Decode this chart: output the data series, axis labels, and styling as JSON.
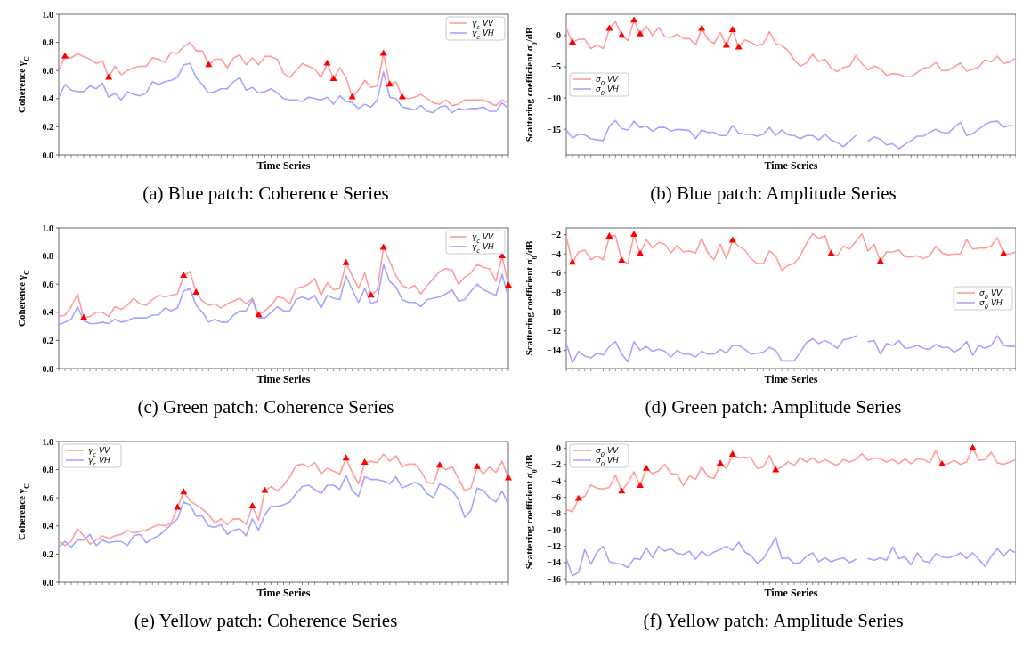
{
  "chart_data": [
    {
      "type": "line",
      "title": "(a) Blue patch: Coherence Series",
      "xlabel": "Time Series",
      "ylabel": "Coherence γ$_{C}$",
      "legend": "top right",
      "ylim": [
        0,
        1
      ],
      "yticks": [
        {
          "value": 0,
          "label": "0.0"
        },
        {
          "value": 0.2,
          "label": "0.2"
        },
        {
          "value": 0.4,
          "label": "0.4"
        },
        {
          "value": 0.6,
          "label": "0.6"
        },
        {
          "value": 0.8,
          "label": "0.8"
        },
        {
          "value": 1,
          "label": "1.0"
        }
      ],
      "categories": [
        null,
        null,
        null,
        null,
        null,
        null,
        null,
        null,
        null,
        null,
        null,
        null,
        null,
        null,
        null,
        null,
        null,
        null,
        null,
        null,
        null,
        null,
        null,
        null,
        null,
        null,
        null,
        null,
        null,
        null,
        null,
        null,
        null,
        null,
        null,
        null,
        null,
        null,
        null,
        null,
        null,
        null,
        null,
        null,
        null,
        null,
        null,
        null,
        null,
        null,
        null,
        null,
        null,
        null,
        null,
        null,
        null,
        null,
        null,
        null,
        null,
        null,
        null,
        null,
        null,
        null,
        null,
        null,
        null,
        null,
        null,
        null,
        null
      ],
      "series": [
        {
          "name": "γ$_{c}$ VV",
          "color": "#ff9d9d",
          "values": [
            0.6,
            0.7,
            0.69,
            0.72,
            0.7,
            0.68,
            0.65,
            0.67,
            0.55,
            0.63,
            0.57,
            0.6,
            0.62,
            0.63,
            0.63,
            0.69,
            0.68,
            0.66,
            0.73,
            0.72,
            0.77,
            0.8,
            0.74,
            0.74,
            0.64,
            0.68,
            0.68,
            0.62,
            0.69,
            0.71,
            0.64,
            0.69,
            0.64,
            0.7,
            0.7,
            0.68,
            0.58,
            0.55,
            0.6,
            0.65,
            0.63,
            0.61,
            0.55,
            0.65,
            0.54,
            0.62,
            0.55,
            0.41,
            0.46,
            0.53,
            0.48,
            0.49,
            0.72,
            0.5,
            0.52,
            0.41,
            0.4,
            0.41,
            0.43,
            0.4,
            0.37,
            0.36,
            0.39,
            0.35,
            0.36,
            0.39,
            0.39,
            0.39,
            0.39,
            0.37,
            0.35,
            0.39,
            0.37
          ]
        },
        {
          "name": "γ$_{c}$ VH",
          "color": "#a5a5ff",
          "values": [
            0.41,
            0.5,
            0.46,
            0.45,
            0.45,
            0.49,
            0.47,
            0.51,
            0.41,
            0.44,
            0.39,
            0.45,
            0.43,
            0.42,
            0.44,
            0.52,
            0.5,
            0.52,
            0.53,
            0.55,
            0.64,
            0.65,
            0.55,
            0.5,
            0.44,
            0.45,
            0.47,
            0.47,
            0.52,
            0.55,
            0.46,
            0.48,
            0.44,
            0.45,
            0.47,
            0.44,
            0.4,
            0.39,
            0.39,
            0.38,
            0.41,
            0.4,
            0.39,
            0.41,
            0.36,
            0.42,
            0.38,
            0.37,
            0.33,
            0.36,
            0.34,
            0.39,
            0.59,
            0.41,
            0.4,
            0.34,
            0.33,
            0.32,
            0.35,
            0.31,
            0.3,
            0.34,
            0.35,
            0.3,
            0.33,
            0.32,
            0.33,
            0.33,
            0.34,
            0.31,
            0.31,
            0.37,
            0.33
          ]
        },
        {
          "type": "scatter",
          "marker": "triangle",
          "color": "#ff0000",
          "values": [
            null,
            0.7,
            null,
            null,
            null,
            null,
            null,
            null,
            0.55,
            null,
            null,
            null,
            null,
            null,
            null,
            null,
            null,
            null,
            null,
            null,
            null,
            null,
            null,
            null,
            0.64,
            null,
            null,
            null,
            null,
            null,
            null,
            null,
            null,
            null,
            null,
            null,
            null,
            null,
            null,
            null,
            null,
            null,
            null,
            0.65,
            0.54,
            null,
            null,
            0.41,
            null,
            null,
            null,
            null,
            0.72,
            0.5,
            null,
            0.41,
            null,
            null,
            null,
            null,
            null,
            null,
            null,
            null,
            null,
            null,
            null,
            null,
            null,
            null,
            null,
            null,
            null
          ]
        }
      ]
    },
    {
      "type": "line",
      "title": "(b) Blue patch: Amplitude Series",
      "xlabel": "Time Series",
      "ylabel": "Scattering coefficient σ$_{0}$/dB",
      "legend": "left",
      "ylim": [
        -19.1,
        3.4
      ],
      "yticks": [
        {
          "value": -15,
          "label": "−15"
        },
        {
          "value": -10,
          "label": "−10"
        },
        {
          "value": -5,
          "label": "−5"
        },
        0
      ],
      "categories": [
        null,
        null,
        null,
        null,
        null,
        null,
        null,
        null,
        null,
        null,
        null,
        null,
        null,
        null,
        null,
        null,
        null,
        null,
        null,
        null,
        null,
        null,
        null,
        null,
        null,
        null,
        null,
        null,
        null,
        null,
        null,
        null,
        null,
        null,
        null,
        null,
        null,
        null,
        null,
        null,
        null,
        null,
        null,
        null,
        null,
        null,
        null,
        null,
        null,
        null,
        null,
        null,
        null,
        null,
        null,
        null,
        null,
        null,
        null,
        null,
        null,
        null,
        null,
        null,
        null,
        null,
        null,
        null,
        null,
        null,
        null,
        null,
        null,
        null
      ],
      "series": [
        {
          "name": "σ$_{0}$ VV",
          "color": "#ff9d9d",
          "values": [
            1.2,
            -1.1,
            -0.6,
            -0.6,
            -2.1,
            -1.5,
            -2.1,
            1.1,
            2.2,
            0.0,
            -0.8,
            2.4,
            0.2,
            1.5,
            0.0,
            1.3,
            -0.2,
            -0.3,
            0.2,
            -0.5,
            -0.5,
            -1.5,
            1.1,
            -0.6,
            -1.3,
            0.5,
            -1.6,
            0.9,
            -1.9,
            -0.7,
            -1.1,
            -1.6,
            -1.3,
            0.6,
            -1.3,
            -1.6,
            -2.4,
            -3.9,
            -4.9,
            -4.4,
            -3.0,
            -4.2,
            -3.8,
            -5.2,
            -5.8,
            -5.1,
            -4.9,
            -3.2,
            -4.5,
            -5.5,
            -4.9,
            -5.3,
            -6.4,
            -6.1,
            -6.2,
            -6.6,
            -6.6,
            -5.9,
            -5.2,
            -5.1,
            -4.3,
            -5.6,
            -5.6,
            -5.0,
            -4.4,
            -5.7,
            -5.4,
            -5.0,
            -3.9,
            -4.2,
            -3.3,
            -4.5,
            -4.2,
            -3.6
          ]
        },
        {
          "name": "σ$_{0}$ VH",
          "color": "#a5a5ff",
          "values": [
            -15.1,
            -16.4,
            -15.8,
            -15.9,
            -16.5,
            -16.7,
            -16.8,
            -14.5,
            -13.6,
            -14.9,
            -15.1,
            -13.7,
            -14.7,
            -14.5,
            -15.3,
            -14.7,
            -14.7,
            -15.3,
            -15.0,
            -15.1,
            -15.2,
            -16.5,
            -15.1,
            -15.5,
            -15.5,
            -16.0,
            -16.0,
            -14.4,
            -15.6,
            -15.8,
            -15.8,
            -16.1,
            -15.8,
            -14.7,
            -16.0,
            -15.1,
            -15.9,
            -16.0,
            -16.5,
            -16.0,
            -16.0,
            -16.7,
            -15.8,
            -16.7,
            -17.1,
            -17.8,
            -16.9,
            -16.0,
            null,
            -16.9,
            -16.2,
            -16.6,
            -17.5,
            -17.3,
            -18.1,
            -17.4,
            -16.8,
            -16.1,
            -16.1,
            -15.5,
            -15.0,
            -15.5,
            -15.6,
            -14.7,
            -13.9,
            -16.0,
            -15.7,
            -15.0,
            -14.2,
            -13.8,
            -13.7,
            -14.7,
            -14.4,
            -14.5
          ]
        },
        {
          "type": "scatter",
          "marker": "triangle",
          "color": "#ff0000",
          "values": [
            null,
            -1.1,
            null,
            null,
            null,
            null,
            null,
            1.1,
            null,
            0.0,
            null,
            2.4,
            0.2,
            null,
            null,
            null,
            null,
            null,
            null,
            null,
            null,
            null,
            1.1,
            null,
            null,
            null,
            -1.6,
            0.9,
            -1.9,
            null,
            null,
            null,
            null,
            null,
            null,
            null,
            null,
            null,
            null,
            null,
            null,
            null,
            null,
            null,
            null,
            null,
            null,
            null,
            null,
            null,
            null,
            null,
            null,
            null,
            null,
            null,
            null,
            null,
            null,
            null,
            null,
            null,
            null,
            null,
            null,
            null,
            null,
            null,
            null,
            null,
            null,
            null,
            null,
            null
          ]
        }
      ]
    },
    {
      "type": "line",
      "title": "(c) Green patch: Coherence Series",
      "xlabel": "Time Series",
      "ylabel": "Coherence γ$_{C}$",
      "legend": "top right",
      "ylim": [
        0,
        1
      ],
      "yticks": [
        {
          "value": 0,
          "label": "0.0"
        },
        {
          "value": 0.2,
          "label": "0.2"
        },
        {
          "value": 0.4,
          "label": "0.4"
        },
        {
          "value": 0.6,
          "label": "0.6"
        },
        {
          "value": 0.8,
          "label": "0.8"
        },
        {
          "value": 1,
          "label": "1.0"
        }
      ],
      "categories": [
        null,
        null,
        null,
        null,
        null,
        null,
        null,
        null,
        null,
        null,
        null,
        null,
        null,
        null,
        null,
        null,
        null,
        null,
        null,
        null,
        null,
        null,
        null,
        null,
        null,
        null,
        null,
        null,
        null,
        null,
        null,
        null,
        null,
        null,
        null,
        null,
        null,
        null,
        null,
        null,
        null,
        null,
        null,
        null,
        null,
        null,
        null,
        null,
        null,
        null,
        null,
        null,
        null,
        null,
        null,
        null,
        null,
        null,
        null,
        null,
        null,
        null,
        null,
        null,
        null,
        null,
        null,
        null,
        null,
        null,
        null,
        null,
        null
      ],
      "series": [
        {
          "name": "γ$_{c}$ VV",
          "color": "#ff9d9d",
          "values": [
            0.37,
            0.38,
            0.44,
            0.53,
            0.36,
            0.37,
            0.4,
            0.4,
            0.37,
            0.44,
            0.42,
            0.45,
            0.5,
            0.46,
            0.45,
            0.49,
            0.52,
            0.51,
            0.52,
            0.53,
            0.66,
            0.69,
            0.54,
            0.48,
            0.45,
            0.46,
            0.43,
            0.46,
            0.48,
            0.5,
            0.46,
            0.5,
            0.38,
            0.41,
            0.45,
            0.51,
            0.5,
            0.46,
            0.57,
            0.58,
            0.6,
            0.64,
            0.52,
            0.61,
            0.56,
            0.57,
            0.75,
            0.66,
            0.57,
            0.68,
            0.52,
            0.56,
            0.86,
            0.76,
            0.66,
            0.59,
            0.57,
            0.59,
            0.53,
            0.59,
            0.64,
            0.69,
            0.71,
            0.7,
            0.6,
            0.65,
            0.68,
            0.74,
            0.72,
            0.71,
            0.62,
            0.8,
            0.59
          ]
        },
        {
          "name": "γ$_{c}$ VH",
          "color": "#a5a5ff",
          "values": [
            0.31,
            0.33,
            0.35,
            0.44,
            0.34,
            0.32,
            0.32,
            0.33,
            0.32,
            0.35,
            0.33,
            0.34,
            0.36,
            0.36,
            0.36,
            0.38,
            0.38,
            0.43,
            0.41,
            0.43,
            0.55,
            0.57,
            0.45,
            0.4,
            0.33,
            0.35,
            0.33,
            0.33,
            0.38,
            0.41,
            0.41,
            0.49,
            0.36,
            0.36,
            0.4,
            0.44,
            0.41,
            0.41,
            0.49,
            0.51,
            0.49,
            0.52,
            0.43,
            0.52,
            0.5,
            0.49,
            0.66,
            0.56,
            0.47,
            0.57,
            0.46,
            0.48,
            0.74,
            0.62,
            0.58,
            0.49,
            0.47,
            0.47,
            0.44,
            0.49,
            0.5,
            0.51,
            0.53,
            0.56,
            0.48,
            0.49,
            0.55,
            0.6,
            0.56,
            0.54,
            0.52,
            0.67,
            0.5
          ]
        },
        {
          "type": "scatter",
          "marker": "triangle",
          "color": "#ff0000",
          "values": [
            null,
            null,
            null,
            null,
            0.36,
            null,
            null,
            null,
            null,
            null,
            null,
            null,
            null,
            null,
            null,
            null,
            null,
            null,
            null,
            null,
            0.66,
            null,
            0.54,
            null,
            null,
            null,
            null,
            null,
            null,
            null,
            null,
            null,
            0.38,
            null,
            null,
            null,
            null,
            null,
            null,
            null,
            null,
            null,
            null,
            null,
            null,
            null,
            0.75,
            null,
            null,
            null,
            0.52,
            null,
            0.86,
            null,
            null,
            null,
            null,
            null,
            null,
            null,
            null,
            null,
            null,
            null,
            null,
            null,
            null,
            null,
            null,
            null,
            null,
            0.8,
            0.59
          ]
        }
      ]
    },
    {
      "type": "line",
      "title": "(d) Green patch: Amplitude Series",
      "xlabel": "Time Series",
      "ylabel": "Scattering coefficient σ$_{0}$/dB",
      "legend": "right",
      "ylim": [
        -15.9,
        -1.3
      ],
      "yticks": [
        {
          "value": -14,
          "label": "−14"
        },
        {
          "value": -12,
          "label": "−12"
        },
        {
          "value": -10,
          "label": "−10"
        },
        {
          "value": -8,
          "label": "−8"
        },
        {
          "value": -6,
          "label": "−6"
        },
        {
          "value": -4,
          "label": "−4"
        },
        {
          "value": -2,
          "label": "−2"
        }
      ],
      "categories": [
        null,
        null,
        null,
        null,
        null,
        null,
        null,
        null,
        null,
        null,
        null,
        null,
        null,
        null,
        null,
        null,
        null,
        null,
        null,
        null,
        null,
        null,
        null,
        null,
        null,
        null,
        null,
        null,
        null,
        null,
        null,
        null,
        null,
        null,
        null,
        null,
        null,
        null,
        null,
        null,
        null,
        null,
        null,
        null,
        null,
        null,
        null,
        null,
        null,
        null,
        null,
        null,
        null,
        null,
        null,
        null,
        null,
        null,
        null,
        null,
        null,
        null,
        null,
        null,
        null,
        null,
        null,
        null,
        null,
        null,
        null,
        null,
        null,
        null
      ],
      "series": [
        {
          "name": "σ$_{0}$ VV",
          "color": "#ff9d9d",
          "values": [
            -2.2,
            -4.9,
            -3.8,
            -3.6,
            -4.6,
            -4.2,
            -4.6,
            -2.2,
            -2.1,
            -4.7,
            -5.0,
            -2.0,
            -4.0,
            -2.5,
            -3.4,
            -2.8,
            -3.0,
            -3.9,
            -3.1,
            -3.8,
            -3.7,
            -3.9,
            -2.4,
            -3.9,
            -4.6,
            -3.0,
            -4.5,
            -2.6,
            -3.2,
            -3.6,
            -4.5,
            -5.0,
            -5.0,
            -3.7,
            -4.2,
            -5.7,
            -5.2,
            -5.0,
            -4.2,
            -2.9,
            -1.9,
            -2.4,
            -2.1,
            -4.0,
            -4.2,
            -3.2,
            -3.5,
            -2.7,
            -1.9,
            -3.7,
            -3.0,
            -4.8,
            -3.8,
            -3.8,
            -3.6,
            -4.3,
            -4.3,
            -4.2,
            -4.5,
            -4.2,
            -3.2,
            -3.9,
            -4.1,
            -4.0,
            -4.0,
            -2.5,
            -3.5,
            -3.4,
            -3.4,
            -3.2,
            -2.3,
            -4.0,
            -4.0,
            -3.8
          ]
        },
        {
          "name": "σ$_{0}$ VH",
          "color": "#a5a5ff",
          "values": [
            -13.3,
            -15.3,
            -14.1,
            -14.6,
            -14.8,
            -14.3,
            -14.5,
            -13.6,
            -13.1,
            -14.4,
            -15.2,
            -13.1,
            -14.0,
            -13.6,
            -14.1,
            -13.9,
            -14.1,
            -14.7,
            -14.0,
            -14.4,
            -14.4,
            -14.7,
            -14.1,
            -14.4,
            -14.4,
            -13.9,
            -14.3,
            -13.5,
            -13.5,
            -13.9,
            -14.4,
            -14.3,
            -14.2,
            -13.7,
            -14.0,
            -15.1,
            -15.1,
            -15.1,
            -14.2,
            -13.2,
            -12.8,
            -13.3,
            -13.0,
            -13.3,
            -13.8,
            -12.9,
            -12.8,
            -12.5,
            null,
            -13.1,
            -13.0,
            -14.4,
            -13.3,
            -13.5,
            -13.0,
            -13.8,
            -13.7,
            -13.5,
            -13.8,
            -13.9,
            -13.4,
            -13.7,
            -13.7,
            -14.2,
            -13.8,
            -13.1,
            -14.5,
            -13.5,
            -13.8,
            -13.5,
            -12.5,
            -13.5,
            -13.6,
            -13.6
          ]
        },
        {
          "type": "scatter",
          "marker": "triangle",
          "color": "#ff0000",
          "values": [
            null,
            -4.9,
            null,
            null,
            null,
            null,
            null,
            -2.2,
            null,
            -4.7,
            null,
            -2.0,
            -4.0,
            null,
            null,
            null,
            null,
            null,
            null,
            null,
            null,
            null,
            null,
            null,
            null,
            null,
            null,
            -2.6,
            null,
            null,
            null,
            null,
            null,
            null,
            null,
            null,
            null,
            null,
            null,
            null,
            null,
            null,
            null,
            -4.0,
            null,
            null,
            null,
            null,
            null,
            null,
            null,
            -4.8,
            null,
            null,
            null,
            null,
            null,
            null,
            null,
            null,
            null,
            null,
            null,
            null,
            null,
            null,
            null,
            null,
            null,
            null,
            null,
            -4.0,
            null,
            null
          ]
        }
      ]
    },
    {
      "type": "line",
      "title": "(e) Yellow patch: Coherence Series",
      "xlabel": "Time Series",
      "ylabel": "Coherence γ$_{C}$",
      "legend": "top left",
      "ylim": [
        0,
        1
      ],
      "yticks": [
        {
          "value": 0,
          "label": "0.0"
        },
        {
          "value": 0.2,
          "label": "0.2"
        },
        {
          "value": 0.4,
          "label": "0.4"
        },
        {
          "value": 0.6,
          "label": "0.6"
        },
        {
          "value": 0.8,
          "label": "0.8"
        },
        {
          "value": 1,
          "label": "1.0"
        }
      ],
      "categories": [
        null,
        null,
        null,
        null,
        null,
        null,
        null,
        null,
        null,
        null,
        null,
        null,
        null,
        null,
        null,
        null,
        null,
        null,
        null,
        null,
        null,
        null,
        null,
        null,
        null,
        null,
        null,
        null,
        null,
        null,
        null,
        null,
        null,
        null,
        null,
        null,
        null,
        null,
        null,
        null,
        null,
        null,
        null,
        null,
        null,
        null,
        null,
        null,
        null,
        null,
        null,
        null,
        null,
        null,
        null,
        null,
        null,
        null,
        null,
        null,
        null,
        null,
        null,
        null,
        null,
        null,
        null,
        null,
        null,
        null,
        null,
        null,
        null
      ],
      "series": [
        {
          "name": "γ$_{c}$ VV",
          "color": "#ff9d9d",
          "values": [
            0.29,
            0.26,
            0.29,
            0.38,
            0.33,
            0.27,
            0.3,
            0.33,
            0.31,
            0.33,
            0.34,
            0.37,
            0.35,
            0.36,
            0.37,
            0.39,
            0.41,
            0.4,
            0.42,
            0.53,
            0.64,
            0.58,
            0.55,
            0.52,
            0.48,
            0.42,
            0.45,
            0.41,
            0.45,
            0.45,
            0.41,
            0.54,
            0.44,
            0.65,
            0.68,
            0.65,
            0.69,
            0.75,
            0.83,
            0.84,
            0.82,
            0.85,
            0.77,
            0.81,
            0.79,
            0.77,
            0.88,
            0.78,
            0.7,
            0.85,
            0.86,
            0.85,
            0.91,
            0.86,
            0.9,
            0.82,
            0.84,
            0.84,
            0.79,
            0.71,
            0.7,
            0.83,
            0.8,
            0.82,
            0.74,
            0.65,
            0.67,
            0.82,
            0.77,
            0.82,
            0.78,
            0.86,
            0.74
          ]
        },
        {
          "name": "γ$_{c}$ VH",
          "color": "#a5a5ff",
          "values": [
            0.25,
            0.29,
            0.25,
            0.3,
            0.3,
            0.34,
            0.26,
            0.3,
            0.28,
            0.29,
            0.29,
            0.26,
            0.33,
            0.34,
            0.28,
            0.31,
            0.33,
            0.37,
            0.41,
            0.45,
            0.57,
            0.55,
            0.47,
            0.47,
            0.4,
            0.39,
            0.41,
            0.34,
            0.37,
            0.38,
            0.33,
            0.45,
            0.37,
            0.48,
            0.54,
            0.54,
            0.55,
            0.57,
            0.63,
            0.68,
            0.69,
            0.66,
            0.63,
            0.69,
            0.69,
            0.66,
            0.76,
            0.65,
            0.61,
            0.75,
            0.73,
            0.73,
            0.72,
            0.7,
            0.75,
            0.67,
            0.69,
            0.71,
            0.69,
            0.63,
            0.6,
            0.7,
            0.68,
            0.65,
            0.59,
            0.46,
            0.51,
            0.67,
            0.65,
            0.6,
            0.57,
            0.65,
            0.55
          ]
        },
        {
          "type": "scatter",
          "marker": "triangle",
          "color": "#ff0000",
          "values": [
            null,
            null,
            null,
            null,
            null,
            null,
            null,
            null,
            null,
            null,
            null,
            null,
            null,
            null,
            null,
            null,
            null,
            null,
            null,
            0.53,
            0.64,
            null,
            null,
            null,
            null,
            null,
            null,
            null,
            null,
            null,
            null,
            0.54,
            null,
            0.65,
            null,
            null,
            null,
            null,
            null,
            null,
            null,
            null,
            null,
            null,
            null,
            null,
            0.88,
            null,
            null,
            0.85,
            null,
            null,
            null,
            null,
            null,
            null,
            null,
            null,
            null,
            null,
            null,
            0.83,
            null,
            null,
            null,
            null,
            null,
            0.82,
            null,
            null,
            null,
            null,
            0.74
          ]
        }
      ]
    },
    {
      "type": "line",
      "title": "(f) Yellow patch: Amplitude Series",
      "xlabel": "Time Series",
      "ylabel": "Scattering coefficient σ$_{0}$/dB",
      "legend": "top left",
      "ylim": [
        -16.4,
        0.8
      ],
      "yticks": [
        {
          "value": -16,
          "label": "−16"
        },
        {
          "value": -14,
          "label": "−14"
        },
        {
          "value": -12,
          "label": "−12"
        },
        {
          "value": -10,
          "label": "−10"
        },
        {
          "value": -8,
          "label": "−8"
        },
        {
          "value": -6,
          "label": "−6"
        },
        {
          "value": -4,
          "label": "−4"
        },
        {
          "value": -2,
          "label": "−2"
        },
        0
      ],
      "categories": [
        null,
        null,
        null,
        null,
        null,
        null,
        null,
        null,
        null,
        null,
        null,
        null,
        null,
        null,
        null,
        null,
        null,
        null,
        null,
        null,
        null,
        null,
        null,
        null,
        null,
        null,
        null,
        null,
        null,
        null,
        null,
        null,
        null,
        null,
        null,
        null,
        null,
        null,
        null,
        null,
        null,
        null,
        null,
        null,
        null,
        null,
        null,
        null,
        null,
        null,
        null,
        null,
        null,
        null,
        null,
        null,
        null,
        null,
        null,
        null,
        null,
        null,
        null,
        null,
        null,
        null,
        null,
        null,
        null,
        null,
        null,
        null,
        null,
        null
      ],
      "series": [
        {
          "name": "σ$_{0}$ VV",
          "color": "#ff9d9d",
          "values": [
            -7.5,
            -7.8,
            -6.2,
            -5.9,
            -4.5,
            -4.9,
            -5.0,
            -4.8,
            -3.3,
            -5.3,
            -4.2,
            -2.9,
            -4.6,
            -2.5,
            -3.1,
            -2.8,
            -2.0,
            -3.1,
            -3.2,
            -4.6,
            -3.4,
            -3.8,
            -2.3,
            -3.5,
            -3.7,
            -1.9,
            -2.5,
            -0.8,
            -1.2,
            -1.1,
            -1.2,
            -2.5,
            -2.3,
            -0.9,
            -2.7,
            -2.3,
            -1.7,
            -2.1,
            -1.2,
            -1.7,
            -1.2,
            -1.8,
            -1.4,
            -1.8,
            -2.1,
            -1.4,
            -1.7,
            -1.4,
            -0.7,
            -1.5,
            -1.2,
            -1.3,
            -1.7,
            -1.4,
            -1.9,
            -1.3,
            -1.9,
            -1.3,
            -1.4,
            -1.8,
            -0.3,
            -2.0,
            -1.9,
            -1.5,
            -2.0,
            -1.7,
            0.0,
            -1.5,
            -1.4,
            -0.5,
            -1.8,
            -2.0,
            -1.7,
            -1.4
          ]
        },
        {
          "name": "σ$_{0}$ VH",
          "color": "#a5a5ff",
          "values": [
            -13.5,
            -15.6,
            -15.2,
            -12.4,
            -14.2,
            -12.7,
            -12.0,
            -13.9,
            -14.1,
            -14.2,
            -14.6,
            -13.5,
            -13.6,
            -12.2,
            -13.4,
            -12.0,
            -12.6,
            -12.3,
            -12.9,
            -13.0,
            -12.6,
            -13.6,
            -12.6,
            -13.2,
            -12.7,
            -12.4,
            -12.0,
            -12.5,
            -11.5,
            -12.7,
            -13.1,
            -14.1,
            -13.5,
            -12.3,
            -10.9,
            -13.5,
            -13.4,
            -14.1,
            -14.0,
            -13.2,
            -12.8,
            -13.9,
            -13.4,
            -13.9,
            -13.6,
            -13.4,
            -14.0,
            -13.6,
            null,
            -13.5,
            -13.7,
            -13.4,
            -13.7,
            -12.1,
            -13.5,
            -13.3,
            -14.3,
            -12.8,
            -13.8,
            -14.0,
            -12.9,
            -13.3,
            -13.4,
            -13.2,
            -12.8,
            -13.5,
            -12.8,
            -13.6,
            -14.5,
            -13.2,
            -12.3,
            -13.2,
            -12.4,
            -12.8
          ]
        },
        {
          "type": "scatter",
          "marker": "triangle",
          "color": "#ff0000",
          "values": [
            null,
            null,
            -6.2,
            null,
            null,
            null,
            null,
            null,
            null,
            -5.3,
            null,
            null,
            -4.6,
            -2.5,
            null,
            null,
            null,
            null,
            null,
            null,
            null,
            null,
            null,
            null,
            null,
            -1.9,
            null,
            -0.8,
            null,
            null,
            null,
            null,
            null,
            null,
            -2.7,
            null,
            null,
            null,
            null,
            null,
            null,
            null,
            null,
            null,
            null,
            null,
            null,
            null,
            null,
            null,
            null,
            null,
            null,
            null,
            null,
            null,
            null,
            null,
            null,
            null,
            null,
            -2.0,
            null,
            null,
            null,
            null,
            0.0,
            null,
            null,
            null,
            null,
            null,
            null,
            null
          ]
        }
      ]
    }
  ]
}
